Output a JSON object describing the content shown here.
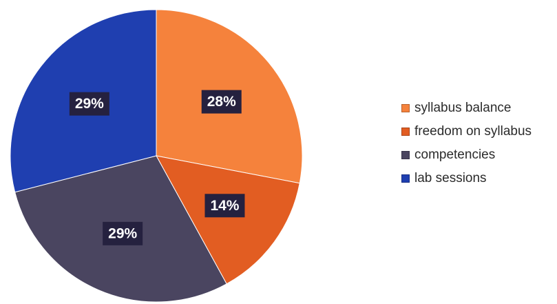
{
  "colors": {
    "syllabus_balance": "#f5823c",
    "freedom_on_syllabus": "#e25d22",
    "competencies": "#4a4560",
    "lab_sessions": "#1f3fb0",
    "label_box": "#25213f"
  },
  "chart_data": {
    "type": "pie",
    "title": "",
    "legend_position": "right",
    "start_angle_deg": 0,
    "direction": "clockwise",
    "slices": [
      {
        "label": "syllabus balance",
        "value": 28,
        "display": "28%",
        "color": "#f5823c"
      },
      {
        "label": "freedom on syllabus",
        "value": 14,
        "display": "14%",
        "color": "#e25d22"
      },
      {
        "label": "competencies",
        "value": 29,
        "display": "29%",
        "color": "#4a4560"
      },
      {
        "label": "lab sessions",
        "value": 29,
        "display": "29%",
        "color": "#1f3fb0"
      }
    ]
  },
  "legend": {
    "items": [
      {
        "label": "syllabus balance",
        "color": "#f5823c"
      },
      {
        "label": "freedom on syllabus",
        "color": "#e25d22"
      },
      {
        "label": "competencies",
        "color": "#4a4560"
      },
      {
        "label": "lab sessions",
        "color": "#1f3fb0"
      }
    ]
  }
}
